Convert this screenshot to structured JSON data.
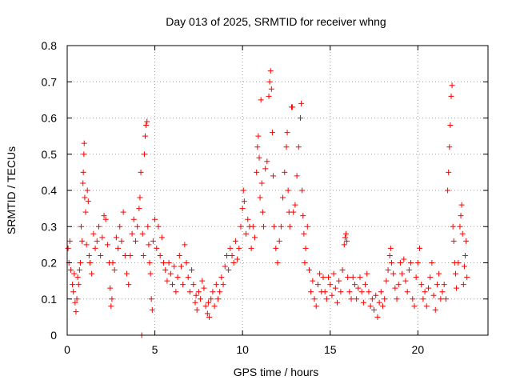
{
  "chart_data": {
    "type": "scatter",
    "title": "Day 013 of 2025, SRMTID for receiver whng",
    "xlabel": "GPS time / hours",
    "ylabel": "SRMTID / TECUs",
    "xlim": [
      0,
      24
    ],
    "ylim": [
      0,
      0.8
    ],
    "xticks": [
      0,
      5,
      10,
      15,
      20
    ],
    "yticks": [
      0,
      0.1,
      0.2,
      0.3,
      0.4,
      0.5,
      0.6,
      0.7,
      0.8
    ],
    "xtick_labels": [
      "0",
      "5",
      "10",
      "15",
      "20"
    ],
    "ytick_labels": [
      "0",
      "0.1",
      "0.2",
      "0.3",
      "0.4",
      "0.5",
      "0.6",
      "0.7",
      "0.8"
    ],
    "grid": true,
    "marker": "+",
    "marker_color": "#ff0000",
    "series": [
      {
        "name": "SRMTID",
        "points": [
          [
            0.05,
            0.24
          ],
          [
            0.1,
            0.2
          ],
          [
            0.15,
            0.26
          ],
          [
            0.2,
            0.18
          ],
          [
            0.3,
            0.14
          ],
          [
            0.35,
            0.12
          ],
          [
            0.4,
            0.17
          ],
          [
            0.45,
            0.09
          ],
          [
            0.5,
            0.065
          ],
          [
            0.55,
            0.1
          ],
          [
            0.6,
            0.16
          ],
          [
            0.65,
            0.14
          ],
          [
            0.7,
            0.18
          ],
          [
            0.75,
            0.2
          ],
          [
            0.8,
            0.3
          ],
          [
            0.85,
            0.26
          ],
          [
            0.9,
            0.42
          ],
          [
            0.92,
            0.45
          ],
          [
            0.95,
            0.5
          ],
          [
            0.97,
            0.53
          ],
          [
            1.0,
            0.38
          ],
          [
            1.05,
            0.34
          ],
          [
            1.1,
            0.25
          ],
          [
            1.15,
            0.4
          ],
          [
            1.2,
            0.37
          ],
          [
            1.25,
            0.22
          ],
          [
            1.3,
            0.2
          ],
          [
            1.4,
            0.17
          ],
          [
            1.5,
            0.28
          ],
          [
            1.6,
            0.24
          ],
          [
            1.7,
            0.26
          ],
          [
            1.8,
            0.3
          ],
          [
            1.9,
            0.22
          ],
          [
            2.0,
            0.27
          ],
          [
            2.1,
            0.33
          ],
          [
            2.2,
            0.32
          ],
          [
            2.3,
            0.25
          ],
          [
            2.4,
            0.2
          ],
          [
            2.45,
            0.13
          ],
          [
            2.5,
            0.08
          ],
          [
            2.55,
            0.1
          ],
          [
            2.6,
            0.2
          ],
          [
            2.7,
            0.18
          ],
          [
            2.8,
            0.27
          ],
          [
            2.9,
            0.24
          ],
          [
            3.0,
            0.3
          ],
          [
            3.1,
            0.26
          ],
          [
            3.2,
            0.34
          ],
          [
            3.3,
            0.22
          ],
          [
            3.4,
            0.17
          ],
          [
            3.5,
            0.14
          ],
          [
            3.6,
            0.22
          ],
          [
            3.7,
            0.28
          ],
          [
            3.8,
            0.32
          ],
          [
            3.9,
            0.26
          ],
          [
            4.0,
            0.3
          ],
          [
            4.1,
            0.35
          ],
          [
            4.15,
            0.38
          ],
          [
            4.2,
            0.45
          ],
          [
            4.25,
            0.0
          ],
          [
            4.3,
            0.28
          ],
          [
            4.35,
            0.22
          ],
          [
            4.4,
            0.5
          ],
          [
            4.45,
            0.55
          ],
          [
            4.5,
            0.58
          ],
          [
            4.55,
            0.59
          ],
          [
            4.6,
            0.3
          ],
          [
            4.65,
            0.25
          ],
          [
            4.7,
            0.2
          ],
          [
            4.75,
            0.17
          ],
          [
            4.8,
            0.1
          ],
          [
            4.85,
            0.07
          ],
          [
            4.9,
            0.26
          ],
          [
            5.0,
            0.32
          ],
          [
            5.1,
            0.24
          ],
          [
            5.2,
            0.3
          ],
          [
            5.3,
            0.22
          ],
          [
            5.4,
            0.27
          ],
          [
            5.5,
            0.2
          ],
          [
            5.6,
            0.18
          ],
          [
            5.7,
            0.15
          ],
          [
            5.8,
            0.2
          ],
          [
            5.9,
            0.17
          ],
          [
            6.0,
            0.14
          ],
          [
            6.1,
            0.19
          ],
          [
            6.2,
            0.12
          ],
          [
            6.3,
            0.16
          ],
          [
            6.4,
            0.22
          ],
          [
            6.5,
            0.19
          ],
          [
            6.6,
            0.14
          ],
          [
            6.7,
            0.25
          ],
          [
            6.8,
            0.2
          ],
          [
            6.9,
            0.16
          ],
          [
            7.0,
            0.12
          ],
          [
            7.1,
            0.18
          ],
          [
            7.2,
            0.14
          ],
          [
            7.3,
            0.09
          ],
          [
            7.35,
            0.11
          ],
          [
            7.4,
            0.07
          ],
          [
            7.5,
            0.12
          ],
          [
            7.6,
            0.1
          ],
          [
            7.7,
            0.15
          ],
          [
            7.8,
            0.13
          ],
          [
            7.9,
            0.08
          ],
          [
            8.0,
            0.06
          ],
          [
            8.05,
            0.09
          ],
          [
            8.1,
            0.05
          ],
          [
            8.2,
            0.1
          ],
          [
            8.3,
            0.12
          ],
          [
            8.4,
            0.08
          ],
          [
            8.5,
            0.14
          ],
          [
            8.6,
            0.1
          ],
          [
            8.7,
            0.12
          ],
          [
            8.8,
            0.16
          ],
          [
            8.9,
            0.14
          ],
          [
            9.0,
            0.19
          ],
          [
            9.1,
            0.22
          ],
          [
            9.2,
            0.18
          ],
          [
            9.3,
            0.24
          ],
          [
            9.4,
            0.22
          ],
          [
            9.5,
            0.2
          ],
          [
            9.6,
            0.26
          ],
          [
            9.7,
            0.21
          ],
          [
            9.8,
            0.24
          ],
          [
            9.9,
            0.3
          ],
          [
            10.0,
            0.35
          ],
          [
            10.05,
            0.4
          ],
          [
            10.1,
            0.37
          ],
          [
            10.2,
            0.28
          ],
          [
            10.3,
            0.32
          ],
          [
            10.4,
            0.3
          ],
          [
            10.5,
            0.24
          ],
          [
            10.6,
            0.3
          ],
          [
            10.7,
            0.27
          ],
          [
            10.8,
            0.45
          ],
          [
            10.85,
            0.52
          ],
          [
            10.9,
            0.55
          ],
          [
            10.95,
            0.49
          ],
          [
            11.0,
            0.38
          ],
          [
            11.05,
            0.65
          ],
          [
            11.1,
            0.42
          ],
          [
            11.15,
            0.34
          ],
          [
            11.2,
            0.3
          ],
          [
            11.3,
            0.46
          ],
          [
            11.4,
            0.48
          ],
          [
            11.5,
            0.66
          ],
          [
            11.55,
            0.7
          ],
          [
            11.6,
            0.73
          ],
          [
            11.65,
            0.68
          ],
          [
            11.7,
            0.56
          ],
          [
            11.75,
            0.44
          ],
          [
            11.8,
            0.3
          ],
          [
            11.9,
            0.24
          ],
          [
            12.0,
            0.2
          ],
          [
            12.1,
            0.26
          ],
          [
            12.2,
            0.3
          ],
          [
            12.3,
            0.38
          ],
          [
            12.4,
            0.45
          ],
          [
            12.5,
            0.52
          ],
          [
            12.55,
            0.56
          ],
          [
            12.6,
            0.4
          ],
          [
            12.65,
            0.34
          ],
          [
            12.7,
            0.3
          ],
          [
            12.8,
            0.63
          ],
          [
            12.85,
            0.63
          ],
          [
            12.9,
            0.34
          ],
          [
            13.0,
            0.36
          ],
          [
            13.1,
            0.44
          ],
          [
            13.2,
            0.52
          ],
          [
            13.3,
            0.6
          ],
          [
            13.35,
            0.64
          ],
          [
            13.4,
            0.4
          ],
          [
            13.45,
            0.33
          ],
          [
            13.5,
            0.28
          ],
          [
            13.55,
            0.2
          ],
          [
            13.6,
            0.24
          ],
          [
            13.7,
            0.3
          ],
          [
            13.8,
            0.18
          ],
          [
            13.9,
            0.12
          ],
          [
            14.0,
            0.15
          ],
          [
            14.1,
            0.1
          ],
          [
            14.2,
            0.08
          ],
          [
            14.3,
            0.14
          ],
          [
            14.4,
            0.17
          ],
          [
            14.5,
            0.12
          ],
          [
            14.6,
            0.16
          ],
          [
            14.7,
            0.12
          ],
          [
            14.8,
            0.1
          ],
          [
            14.9,
            0.16
          ],
          [
            15.0,
            0.14
          ],
          [
            15.1,
            0.11
          ],
          [
            15.2,
            0.17
          ],
          [
            15.3,
            0.13
          ],
          [
            15.4,
            0.09
          ],
          [
            15.5,
            0.15
          ],
          [
            15.6,
            0.12
          ],
          [
            15.7,
            0.18
          ],
          [
            15.8,
            0.25
          ],
          [
            15.85,
            0.27
          ],
          [
            15.9,
            0.28
          ],
          [
            15.95,
            0.26
          ],
          [
            16.0,
            0.16
          ],
          [
            16.1,
            0.12
          ],
          [
            16.2,
            0.1
          ],
          [
            16.3,
            0.16
          ],
          [
            16.4,
            0.14
          ],
          [
            16.5,
            0.1
          ],
          [
            16.6,
            0.13
          ],
          [
            16.7,
            0.16
          ],
          [
            16.8,
            0.12
          ],
          [
            16.9,
            0.09
          ],
          [
            17.0,
            0.14
          ],
          [
            17.1,
            0.17
          ],
          [
            17.2,
            0.12
          ],
          [
            17.3,
            0.08
          ],
          [
            17.4,
            0.1
          ],
          [
            17.5,
            0.07
          ],
          [
            17.6,
            0.11
          ],
          [
            17.7,
            0.05
          ],
          [
            17.8,
            0.09
          ],
          [
            17.9,
            0.12
          ],
          [
            18.0,
            0.08
          ],
          [
            18.1,
            0.1
          ],
          [
            18.2,
            0.15
          ],
          [
            18.3,
            0.18
          ],
          [
            18.4,
            0.22
          ],
          [
            18.45,
            0.24
          ],
          [
            18.5,
            0.2
          ],
          [
            18.6,
            0.17
          ],
          [
            18.7,
            0.13
          ],
          [
            18.8,
            0.1
          ],
          [
            18.9,
            0.14
          ],
          [
            19.0,
            0.2
          ],
          [
            19.1,
            0.17
          ],
          [
            19.2,
            0.21
          ],
          [
            19.3,
            0.15
          ],
          [
            19.4,
            0.12
          ],
          [
            19.5,
            0.18
          ],
          [
            19.6,
            0.2
          ],
          [
            19.7,
            0.1
          ],
          [
            19.8,
            0.08
          ],
          [
            19.9,
            0.16
          ],
          [
            20.0,
            0.2
          ],
          [
            20.1,
            0.24
          ],
          [
            20.2,
            0.14
          ],
          [
            20.3,
            0.1
          ],
          [
            20.4,
            0.12
          ],
          [
            20.5,
            0.08
          ],
          [
            20.6,
            0.13
          ],
          [
            20.7,
            0.16
          ],
          [
            20.8,
            0.2
          ],
          [
            20.9,
            0.11
          ],
          [
            21.0,
            0.07
          ],
          [
            21.1,
            0.14
          ],
          [
            21.2,
            0.17
          ],
          [
            21.3,
            0.1
          ],
          [
            21.4,
            0.12
          ],
          [
            21.5,
            0.14
          ],
          [
            21.6,
            0.1
          ],
          [
            21.7,
            0.4
          ],
          [
            21.75,
            0.45
          ],
          [
            21.8,
            0.52
          ],
          [
            21.85,
            0.58
          ],
          [
            21.9,
            0.66
          ],
          [
            21.95,
            0.69
          ],
          [
            22.0,
            0.3
          ],
          [
            22.05,
            0.26
          ],
          [
            22.1,
            0.2
          ],
          [
            22.15,
            0.17
          ],
          [
            22.2,
            0.13
          ],
          [
            22.3,
            0.2
          ],
          [
            22.4,
            0.3
          ],
          [
            22.45,
            0.33
          ],
          [
            22.5,
            0.36
          ],
          [
            22.55,
            0.28
          ],
          [
            22.6,
            0.14
          ],
          [
            22.65,
            0.19
          ],
          [
            22.7,
            0.22
          ],
          [
            22.75,
            0.26
          ],
          [
            22.8,
            0.16
          ]
        ]
      }
    ]
  }
}
